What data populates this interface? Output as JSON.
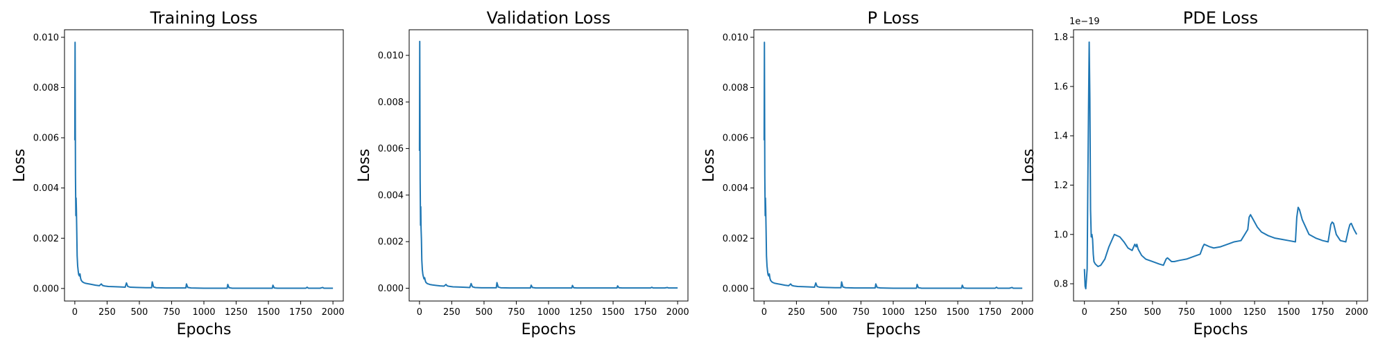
{
  "chart_data": [
    {
      "type": "line",
      "title": "Training Loss",
      "xlabel": "Epochs",
      "ylabel": "Loss",
      "xlim": [
        -80,
        2080
      ],
      "ylim": [
        -0.0005,
        0.0103
      ],
      "xticks": [
        0,
        250,
        500,
        750,
        1000,
        1250,
        1500,
        1750,
        2000
      ],
      "xtick_labels": [
        "0",
        "250",
        "500",
        "750",
        "1000",
        "1250",
        "1500",
        "1750",
        "2000"
      ],
      "yticks": [
        0.0,
        0.002,
        0.004,
        0.006,
        0.008,
        0.01
      ],
      "ytick_labels": [
        "0.000",
        "0.002",
        "0.004",
        "0.006",
        "0.008",
        "0.010"
      ],
      "grid": false,
      "series": [
        {
          "color": "#1f77b4",
          "x": [
            0,
            2,
            5,
            8,
            10,
            12,
            15,
            18,
            22,
            26,
            30,
            35,
            40,
            45,
            50,
            60,
            70,
            80,
            100,
            130,
            160,
            190,
            205,
            215,
            230,
            260,
            300,
            350,
            390,
            400,
            410,
            430,
            480,
            550,
            595,
            600,
            610,
            630,
            700,
            800,
            860,
            865,
            875,
            900,
            1000,
            1100,
            1180,
            1185,
            1195,
            1220,
            1300,
            1400,
            1530,
            1535,
            1545,
            1570,
            1700,
            1790,
            1800,
            1810,
            1900,
            1920,
            1930,
            2000
          ],
          "y": [
            0.0059,
            0.0098,
            0.0045,
            0.0029,
            0.0036,
            0.0032,
            0.0023,
            0.0013,
            0.0009,
            0.0007,
            0.00055,
            0.0005,
            0.00058,
            0.0004,
            0.00032,
            0.00026,
            0.00023,
            0.00021,
            0.00019,
            0.00016,
            0.00013,
            0.00011,
            0.00018,
            0.00012,
            0.0001,
            8e-05,
            7e-05,
            6e-05,
            5e-05,
            0.00022,
            8e-05,
            5e-05,
            4e-05,
            3e-05,
            3e-05,
            0.00026,
            6e-05,
            3e-05,
            2e-05,
            2e-05,
            2e-05,
            0.00018,
            4e-05,
            2e-05,
            1e-05,
            1e-05,
            1e-05,
            0.00016,
            3e-05,
            1e-05,
            1e-05,
            1e-05,
            1e-05,
            0.00013,
            2e-05,
            1e-05,
            1e-05,
            1e-05,
            5e-05,
            1e-05,
            1e-05,
            4e-05,
            1e-05,
            1e-05
          ]
        }
      ]
    },
    {
      "type": "line",
      "title": "Validation Loss",
      "xlabel": "Epochs",
      "ylabel": "Loss",
      "xlim": [
        -80,
        2080
      ],
      "ylim": [
        -0.00055,
        0.0111
      ],
      "xticks": [
        0,
        250,
        500,
        750,
        1000,
        1250,
        1500,
        1750,
        2000
      ],
      "xtick_labels": [
        "0",
        "250",
        "500",
        "750",
        "1000",
        "1250",
        "1500",
        "1750",
        "2000"
      ],
      "yticks": [
        0.0,
        0.002,
        0.004,
        0.006,
        0.008,
        0.01
      ],
      "ytick_labels": [
        "0.000",
        "0.002",
        "0.004",
        "0.006",
        "0.008",
        "0.010"
      ],
      "grid": false,
      "series": [
        {
          "color": "#1f77b4",
          "x": [
            0,
            2,
            5,
            8,
            10,
            12,
            15,
            18,
            22,
            26,
            30,
            35,
            40,
            45,
            50,
            60,
            70,
            80,
            100,
            130,
            160,
            190,
            205,
            215,
            230,
            260,
            300,
            350,
            390,
            400,
            410,
            430,
            480,
            550,
            595,
            600,
            610,
            630,
            700,
            800,
            860,
            865,
            875,
            900,
            1000,
            1100,
            1180,
            1185,
            1195,
            1220,
            1300,
            1400,
            1530,
            1535,
            1545,
            1570,
            1700,
            1790,
            1800,
            1810,
            1900,
            1920,
            1930,
            2000
          ],
          "y": [
            0.0059,
            0.0106,
            0.0047,
            0.0027,
            0.0035,
            0.0026,
            0.0021,
            0.0012,
            0.0008,
            0.0006,
            0.0005,
            0.0004,
            0.00045,
            0.00032,
            0.00025,
            0.0002,
            0.00018,
            0.00016,
            0.00014,
            0.00012,
            0.0001,
            9e-05,
            0.00016,
            0.0001,
            8e-05,
            6e-05,
            5e-05,
            4e-05,
            3e-05,
            0.0002,
            6e-05,
            3e-05,
            2e-05,
            2e-05,
            2e-05,
            0.00024,
            5e-05,
            2e-05,
            1e-05,
            1e-05,
            1e-05,
            0.00013,
            3e-05,
            1e-05,
            1e-05,
            1e-05,
            1e-05,
            0.00012,
            2e-05,
            1e-05,
            1e-05,
            1e-05,
            1e-05,
            0.0001,
            2e-05,
            1e-05,
            1e-05,
            1e-05,
            4e-05,
            1e-05,
            1e-05,
            3e-05,
            1e-05,
            1e-05
          ]
        }
      ]
    },
    {
      "type": "line",
      "title": "P Loss",
      "xlabel": "Epochs",
      "ylabel": "Loss",
      "xlim": [
        -80,
        2080
      ],
      "ylim": [
        -0.0005,
        0.0103
      ],
      "xticks": [
        0,
        250,
        500,
        750,
        1000,
        1250,
        1500,
        1750,
        2000
      ],
      "xtick_labels": [
        "0",
        "250",
        "500",
        "750",
        "1000",
        "1250",
        "1500",
        "1750",
        "2000"
      ],
      "yticks": [
        0.0,
        0.002,
        0.004,
        0.006,
        0.008,
        0.01
      ],
      "ytick_labels": [
        "0.000",
        "0.002",
        "0.004",
        "0.006",
        "0.008",
        "0.010"
      ],
      "grid": false,
      "series": [
        {
          "color": "#1f77b4",
          "x": [
            0,
            2,
            5,
            8,
            10,
            12,
            15,
            18,
            22,
            26,
            30,
            35,
            40,
            45,
            50,
            60,
            70,
            80,
            100,
            130,
            160,
            190,
            205,
            215,
            230,
            260,
            300,
            350,
            390,
            400,
            410,
            430,
            480,
            550,
            595,
            600,
            610,
            630,
            700,
            800,
            860,
            865,
            875,
            900,
            1000,
            1100,
            1180,
            1185,
            1195,
            1220,
            1300,
            1400,
            1530,
            1535,
            1545,
            1570,
            1700,
            1790,
            1800,
            1810,
            1900,
            1920,
            1930,
            2000
          ],
          "y": [
            0.0059,
            0.0098,
            0.0045,
            0.0029,
            0.0036,
            0.0032,
            0.0023,
            0.0013,
            0.0009,
            0.0007,
            0.00055,
            0.0005,
            0.00058,
            0.0004,
            0.00032,
            0.00026,
            0.00023,
            0.00021,
            0.00019,
            0.00016,
            0.00013,
            0.00011,
            0.00018,
            0.00012,
            0.0001,
            8e-05,
            7e-05,
            6e-05,
            5e-05,
            0.00022,
            8e-05,
            5e-05,
            4e-05,
            3e-05,
            3e-05,
            0.00026,
            6e-05,
            3e-05,
            2e-05,
            2e-05,
            2e-05,
            0.00018,
            4e-05,
            2e-05,
            1e-05,
            1e-05,
            1e-05,
            0.00016,
            3e-05,
            1e-05,
            1e-05,
            1e-05,
            1e-05,
            0.00013,
            2e-05,
            1e-05,
            1e-05,
            1e-05,
            5e-05,
            1e-05,
            1e-05,
            4e-05,
            1e-05,
            1e-05
          ]
        }
      ]
    },
    {
      "type": "line",
      "title": "PDE Loss",
      "xlabel": "Epochs",
      "ylabel": "Loss",
      "y_offset_label": "1e−19",
      "y_unit_scale": 1e-19,
      "xlim": [
        -80,
        2080
      ],
      "ylim": [
        0.73,
        1.83
      ],
      "xticks": [
        0,
        250,
        500,
        750,
        1000,
        1250,
        1500,
        1750,
        2000
      ],
      "xtick_labels": [
        "0",
        "250",
        "500",
        "750",
        "1000",
        "1250",
        "1500",
        "1750",
        "2000"
      ],
      "yticks": [
        0.8,
        1.0,
        1.2,
        1.4,
        1.6,
        1.8
      ],
      "ytick_labels": [
        "0.8",
        "1.0",
        "1.2",
        "1.4",
        "1.6",
        "1.8"
      ],
      "grid": false,
      "series": [
        {
          "color": "#1f77b4",
          "x": [
            0,
            5,
            10,
            15,
            20,
            25,
            30,
            35,
            40,
            45,
            50,
            55,
            60,
            65,
            70,
            80,
            100,
            120,
            150,
            180,
            220,
            260,
            290,
            320,
            350,
            370,
            380,
            385,
            395,
            420,
            450,
            500,
            550,
            580,
            600,
            610,
            620,
            640,
            660,
            700,
            750,
            800,
            850,
            870,
            880,
            900,
            920,
            950,
            1000,
            1050,
            1100,
            1150,
            1200,
            1210,
            1220,
            1240,
            1270,
            1300,
            1350,
            1400,
            1450,
            1500,
            1550,
            1560,
            1570,
            1580,
            1600,
            1650,
            1700,
            1750,
            1790,
            1810,
            1820,
            1830,
            1850,
            1880,
            1920,
            1940,
            1950,
            1960,
            1980,
            2000
          ],
          "y": [
            0.86,
            0.79,
            0.78,
            0.82,
            0.86,
            1.2,
            1.5,
            1.78,
            1.55,
            1.1,
            0.99,
            1.0,
            0.98,
            0.92,
            0.89,
            0.88,
            0.87,
            0.875,
            0.9,
            0.95,
            1.0,
            0.99,
            0.97,
            0.945,
            0.935,
            0.96,
            0.95,
            0.96,
            0.94,
            0.915,
            0.9,
            0.89,
            0.88,
            0.875,
            0.9,
            0.905,
            0.9,
            0.89,
            0.89,
            0.895,
            0.9,
            0.91,
            0.92,
            0.95,
            0.96,
            0.955,
            0.95,
            0.945,
            0.95,
            0.96,
            0.97,
            0.975,
            1.02,
            1.07,
            1.08,
            1.06,
            1.03,
            1.01,
            0.995,
            0.985,
            0.98,
            0.975,
            0.97,
            1.07,
            1.11,
            1.1,
            1.06,
            1.0,
            0.985,
            0.975,
            0.97,
            1.04,
            1.05,
            1.045,
            1.0,
            0.975,
            0.97,
            1.02,
            1.04,
            1.045,
            1.02,
            1.0
          ]
        }
      ]
    }
  ]
}
